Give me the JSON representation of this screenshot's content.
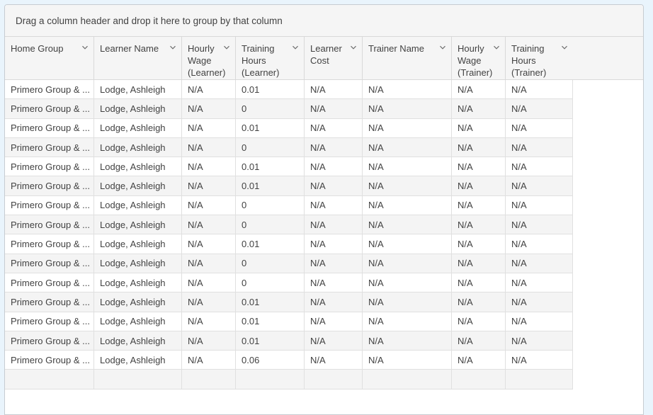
{
  "group_bar": {
    "text": "Drag a column header and drop it here to group by that column"
  },
  "table": {
    "columns": [
      {
        "id": "home-group",
        "label": "Home Group"
      },
      {
        "id": "learner-name",
        "label": "Learner Name"
      },
      {
        "id": "hourly-wage-learner",
        "label": "Hourly Wage (Learner)"
      },
      {
        "id": "training-hours-learner",
        "label": "Training Hours (Learner)"
      },
      {
        "id": "learner-cost",
        "label": "Learner Cost"
      },
      {
        "id": "trainer-name",
        "label": "Trainer Name"
      },
      {
        "id": "hourly-wage-trainer",
        "label": "Hourly Wage (Trainer)"
      },
      {
        "id": "training-hours-trainer",
        "label": "Training Hours (Trainer)"
      }
    ],
    "rows": [
      [
        "Primero Group & ...",
        "Lodge, Ashleigh",
        "N/A",
        "0.01",
        "N/A",
        "N/A",
        "N/A",
        "N/A"
      ],
      [
        "Primero Group & ...",
        "Lodge, Ashleigh",
        "N/A",
        "0",
        "N/A",
        "N/A",
        "N/A",
        "N/A"
      ],
      [
        "Primero Group & ...",
        "Lodge, Ashleigh",
        "N/A",
        "0.01",
        "N/A",
        "N/A",
        "N/A",
        "N/A"
      ],
      [
        "Primero Group & ...",
        "Lodge, Ashleigh",
        "N/A",
        "0",
        "N/A",
        "N/A",
        "N/A",
        "N/A"
      ],
      [
        "Primero Group & ...",
        "Lodge, Ashleigh",
        "N/A",
        "0.01",
        "N/A",
        "N/A",
        "N/A",
        "N/A"
      ],
      [
        "Primero Group & ...",
        "Lodge, Ashleigh",
        "N/A",
        "0.01",
        "N/A",
        "N/A",
        "N/A",
        "N/A"
      ],
      [
        "Primero Group & ...",
        "Lodge, Ashleigh",
        "N/A",
        "0",
        "N/A",
        "N/A",
        "N/A",
        "N/A"
      ],
      [
        "Primero Group & ...",
        "Lodge, Ashleigh",
        "N/A",
        "0",
        "N/A",
        "N/A",
        "N/A",
        "N/A"
      ],
      [
        "Primero Group & ...",
        "Lodge, Ashleigh",
        "N/A",
        "0.01",
        "N/A",
        "N/A",
        "N/A",
        "N/A"
      ],
      [
        "Primero Group & ...",
        "Lodge, Ashleigh",
        "N/A",
        "0",
        "N/A",
        "N/A",
        "N/A",
        "N/A"
      ],
      [
        "Primero Group & ...",
        "Lodge, Ashleigh",
        "N/A",
        "0",
        "N/A",
        "N/A",
        "N/A",
        "N/A"
      ],
      [
        "Primero Group & ...",
        "Lodge, Ashleigh",
        "N/A",
        "0.01",
        "N/A",
        "N/A",
        "N/A",
        "N/A"
      ],
      [
        "Primero Group & ...",
        "Lodge, Ashleigh",
        "N/A",
        "0.01",
        "N/A",
        "N/A",
        "N/A",
        "N/A"
      ],
      [
        "Primero Group & ...",
        "Lodge, Ashleigh",
        "N/A",
        "0.01",
        "N/A",
        "N/A",
        "N/A",
        "N/A"
      ],
      [
        "Primero Group & ...",
        "Lodge, Ashleigh",
        "N/A",
        "0.06",
        "N/A",
        "N/A",
        "N/A",
        "N/A"
      ]
    ]
  },
  "icons": {
    "header_menu": "chevron-down"
  },
  "colors": {
    "page_background": "#e9f4fc",
    "panel_background": "#f5f5f5",
    "alt_row_background": "#f4f4f4",
    "border": "#d9d9d9",
    "text": "#424242"
  }
}
